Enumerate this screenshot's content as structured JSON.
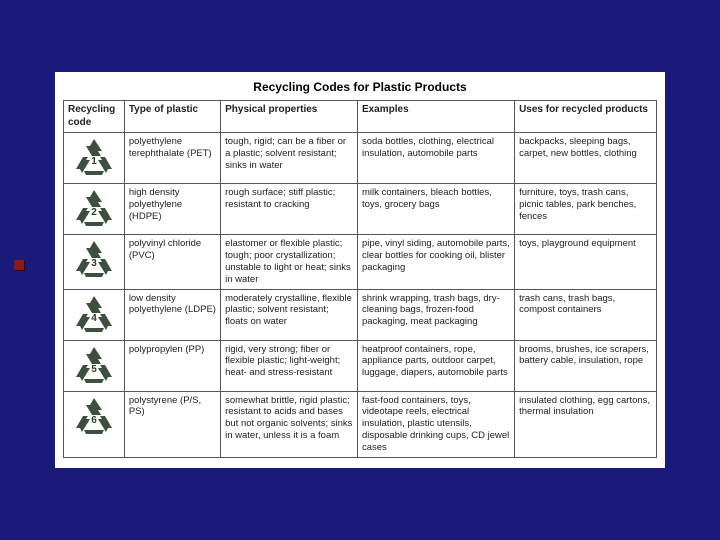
{
  "title": "Recycling Codes for Plastic Products",
  "columns": [
    "Recycling code",
    "Type of plastic",
    "Physical properties",
    "Examples",
    "Uses for recycled products"
  ],
  "icon_color": "#3d4f3d",
  "rows": [
    {
      "code": "1",
      "type": "polyethylene terephthalate (PET)",
      "properties": "tough, rigid; can be a fiber or a plastic; solvent resistant; sinks in water",
      "examples": "soda bottles, clothing, electrical insulation, automobile parts",
      "uses": "backpacks, sleeping bags, carpet, new bottles, clothing"
    },
    {
      "code": "2",
      "type": "high density polyethylene (HDPE)",
      "properties": "rough surface; stiff plastic; resistant to cracking",
      "examples": "milk containers, bleach bottles, toys, grocery bags",
      "uses": "furniture, toys, trash cans, picnic tables, park benches, fences"
    },
    {
      "code": "3",
      "type": "polyvinyl chloride (PVC)",
      "properties": "elastomer or flexible plastic; tough; poor crystallization; unstable to light or heat; sinks in water",
      "examples": "pipe, vinyl siding, automobile parts, clear bottles for cooking oil, blister packaging",
      "uses": "toys, playground equipment"
    },
    {
      "code": "4",
      "type": "low density polyethylene (LDPE)",
      "properties": "moderately crystalline, flexible plastic; solvent resistant; floats on water",
      "examples": "shrink wrapping, trash bags, dry-cleaning bags, frozen-food packaging, meat packaging",
      "uses": "trash cans, trash bags, compost containers"
    },
    {
      "code": "5",
      "type": "polypropylen (PP)",
      "properties": "rigid, very strong; fiber or flexible plastic; light-weight; heat- and stress-resistant",
      "examples": "heatproof containers, rope, appliance parts, outdoor carpet, luggage, diapers, automobile parts",
      "uses": "brooms, brushes, ice scrapers, battery cable, insulation, rope"
    },
    {
      "code": "6",
      "type": "polystyrene (P/S, PS)",
      "properties": "somewhat brittle, rigid plastic; resistant to acids and bases but not organic solvents; sinks in water, unless it is a foam",
      "examples": "fast-food containers, toys, videotape reels, electrical insulation, plastic utensils, disposable drinking cups, CD jewel cases",
      "uses": "insulated clothing, egg cartons, thermal insulation"
    }
  ]
}
